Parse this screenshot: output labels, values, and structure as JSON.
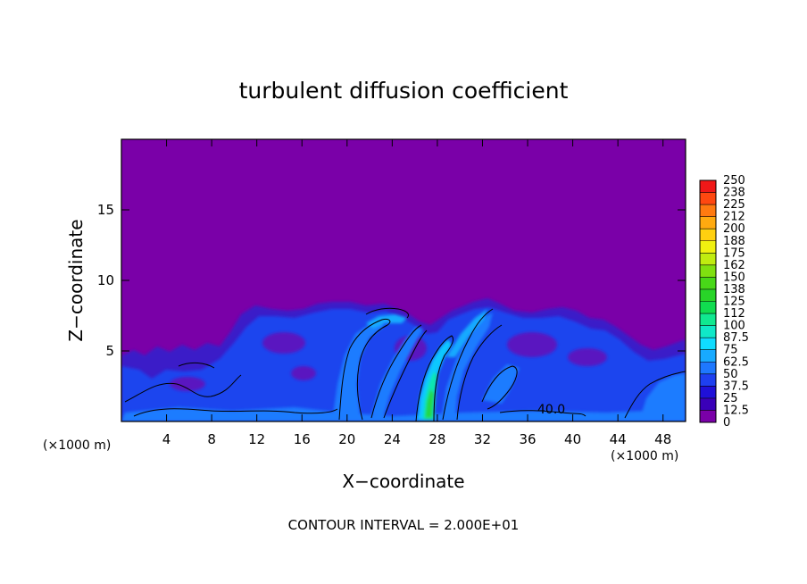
{
  "chart_data": {
    "type": "heatmap",
    "title": "turbulent diffusion coefficient",
    "xlabel": "X−coordinate",
    "ylabel": "Z−coordinate",
    "x_unit_left": "(×1000 m)",
    "x_unit_right": "(×1000 m)",
    "xlim": [
      0,
      50
    ],
    "ylim": [
      0,
      20
    ],
    "x_ticks": [
      4,
      8,
      12,
      16,
      20,
      24,
      28,
      32,
      36,
      40,
      44,
      48
    ],
    "x_tick_labels": [
      "4",
      "8",
      "12",
      "16",
      "20",
      "24",
      "28",
      "32",
      "36",
      "40",
      "44",
      "48"
    ],
    "y_ticks": [
      5,
      10,
      15
    ],
    "y_tick_labels": [
      "5",
      "10",
      "15"
    ],
    "colorbar": {
      "levels": [
        0,
        12.5,
        25,
        37.5,
        50,
        62.5,
        75,
        87.5,
        100,
        112,
        125,
        138,
        150,
        162,
        175,
        188,
        200,
        212,
        225,
        238,
        250
      ],
      "labels": [
        "0",
        "12.5",
        "25",
        "37.5",
        "50",
        "62.5",
        "75",
        "87.5",
        "100",
        "112",
        "125",
        "138",
        "150",
        "162",
        "175",
        "188",
        "200",
        "212",
        "225",
        "238",
        "250"
      ],
      "colors": [
        "#7a00a8",
        "#3a00b8",
        "#1f10d8",
        "#1e40f0",
        "#1e78ff",
        "#18aaff",
        "#10dcff",
        "#10e8c8",
        "#10e890",
        "#10dc50",
        "#28d428",
        "#48d818",
        "#80e010",
        "#c0ec10",
        "#f0f010",
        "#ffd010",
        "#ffaa10",
        "#ff7a10",
        "#ff4810",
        "#f01818",
        "#f07878"
      ]
    },
    "contour_label": "40.0",
    "footer": "CONTOUR INTERVAL = 2.000E+01",
    "background_value": 0,
    "features": [
      {
        "kind": "low-level turbulent layer",
        "x_range": [
          0,
          50
        ],
        "z_top": 8.5,
        "typical_value": 37.5
      },
      {
        "kind": "updraft core",
        "x_center": 27.5,
        "z_range": [
          0,
          3
        ],
        "peak_value": 112
      }
    ]
  }
}
